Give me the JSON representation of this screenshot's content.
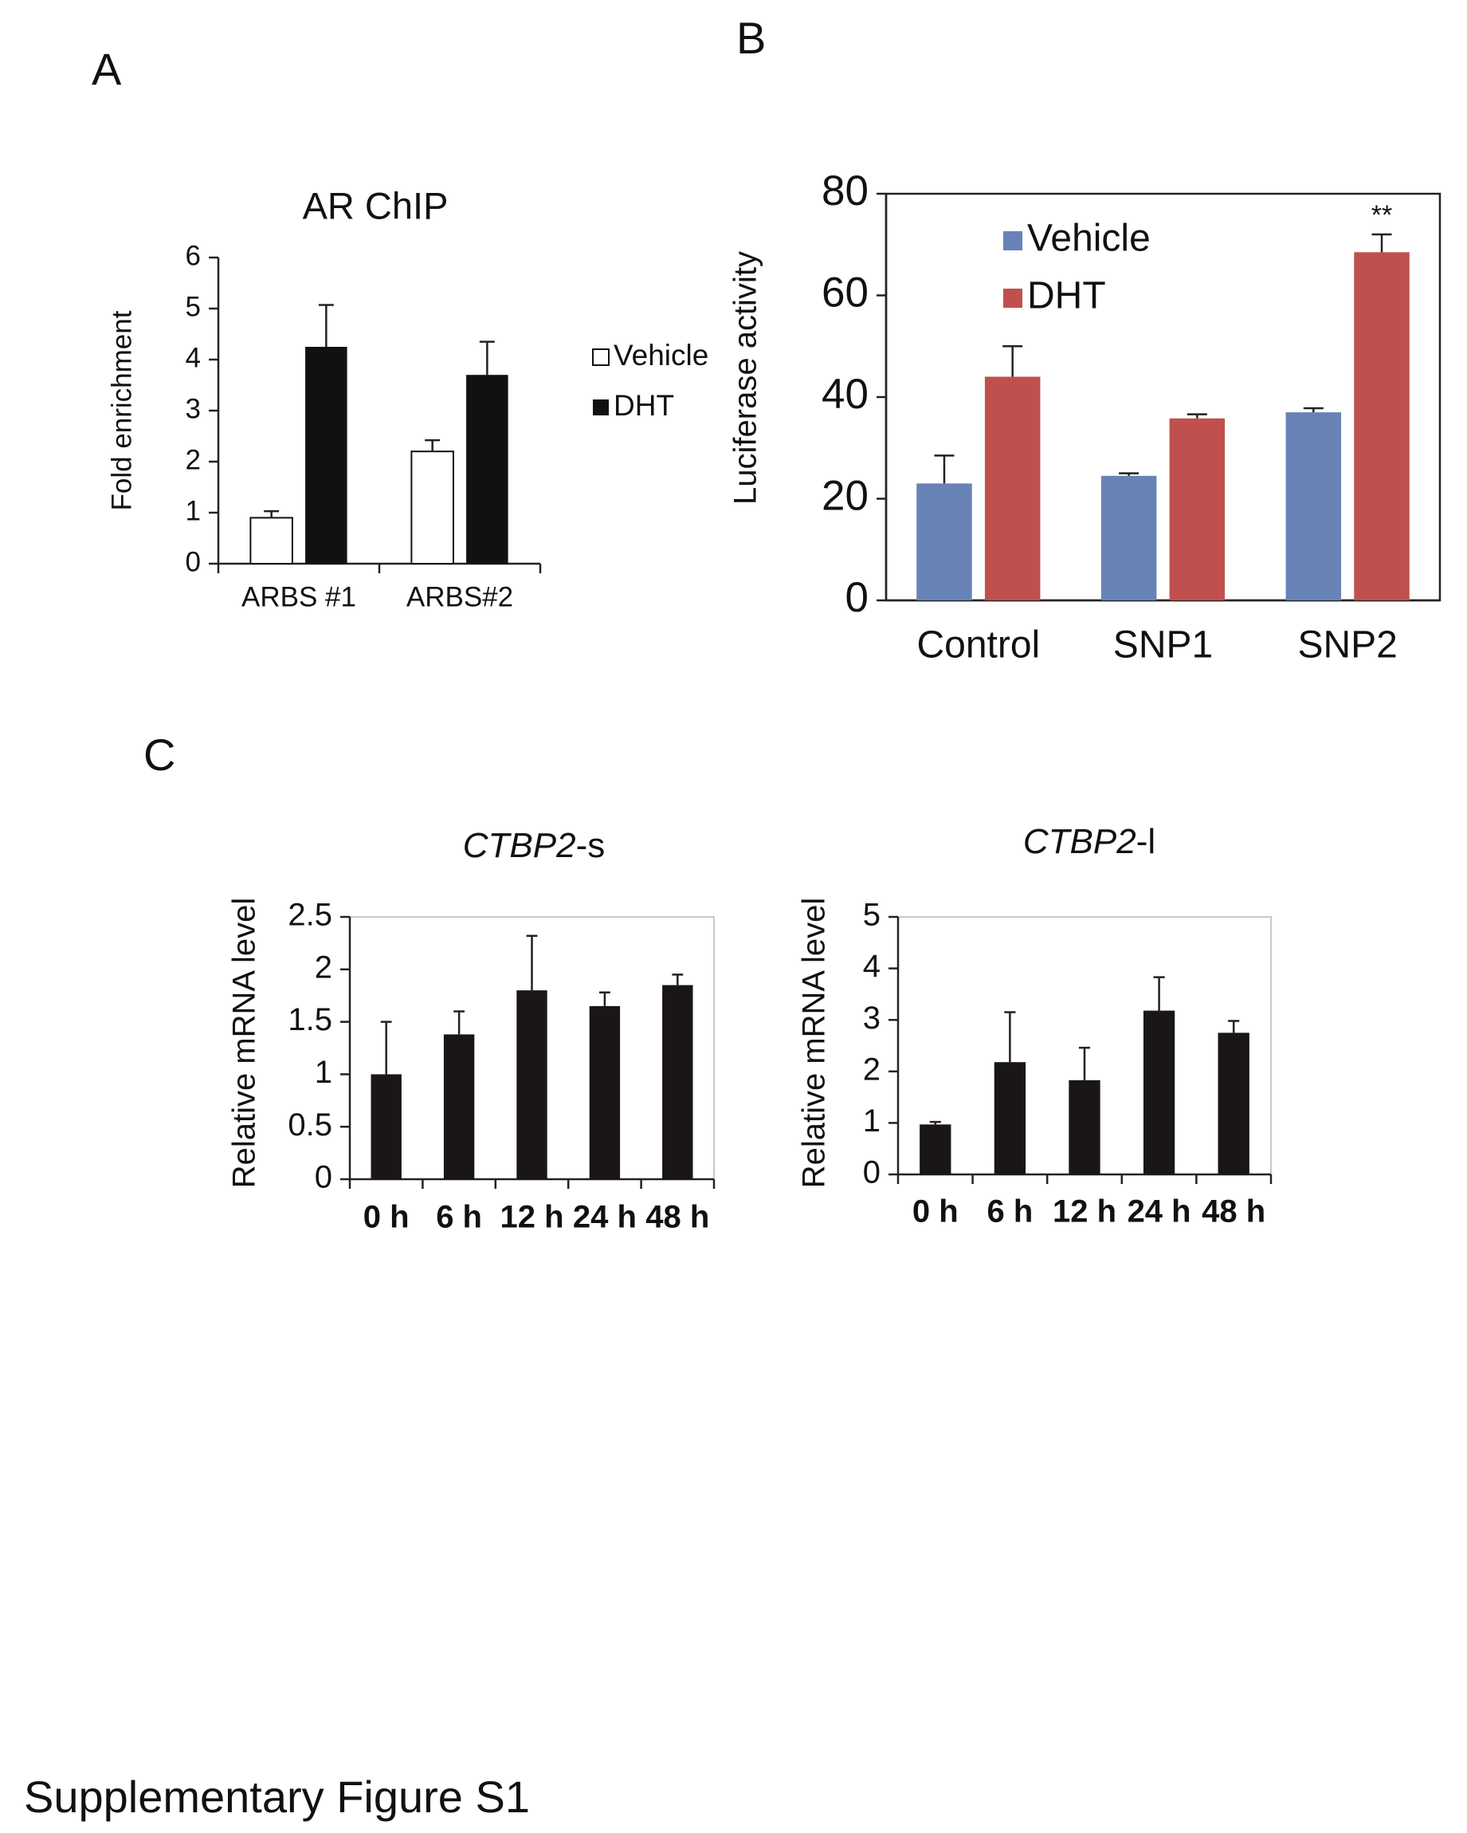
{
  "panels": {
    "a": "A",
    "b": "B",
    "c": "C"
  },
  "caption": "Supplementary Figure S1",
  "chart_data": [
    {
      "type": "bar",
      "title": "AR ChIP",
      "ylabel": "Fold enrichment",
      "categories": [
        "ARBS #1",
        "ARBS#2"
      ],
      "series": [
        {
          "name": "Vehicle",
          "color": "#ffffff",
          "values": [
            0.9,
            2.2
          ],
          "errors": [
            0.13,
            0.22
          ]
        },
        {
          "name": "DHT",
          "color": "#111111",
          "values": [
            4.25,
            3.7
          ],
          "errors": [
            0.82,
            0.65
          ]
        }
      ],
      "ylim": [
        0,
        6
      ],
      "yticks": [
        0,
        1,
        2,
        3,
        4,
        5,
        6
      ],
      "legend": "right-outside"
    },
    {
      "type": "bar",
      "ylabel": "Luciferase activity",
      "categories": [
        "Control",
        "SNP1",
        "SNP2"
      ],
      "series": [
        {
          "name": "Vehicle",
          "color": "#6783b6",
          "values": [
            23,
            24.5,
            37
          ],
          "errors": [
            5.5,
            0.5,
            0.8
          ]
        },
        {
          "name": "DHT",
          "color": "#c0504d",
          "values": [
            44,
            35.8,
            68.5
          ],
          "errors": [
            6,
            0.8,
            3.5
          ]
        }
      ],
      "ylim": [
        0,
        80
      ],
      "yticks": [
        0,
        20,
        40,
        60,
        80
      ],
      "legend": "top-left",
      "annotation": "**"
    },
    {
      "type": "bar",
      "title": {
        "italic": "CTBP2",
        "plain": "-s"
      },
      "ylabel": "Relative mRNA level",
      "categories": [
        "0 h",
        "6 h",
        "12 h",
        "24 h",
        "48 h"
      ],
      "series": [
        {
          "color": "#1a1616",
          "values": [
            1,
            1.38,
            1.8,
            1.65,
            1.85
          ],
          "errors": [
            0.5,
            0.22,
            0.52,
            0.13,
            0.1
          ]
        }
      ],
      "ylim": [
        0,
        2.5
      ],
      "yticks": [
        0,
        0.5,
        1,
        1.5,
        2,
        2.5
      ]
    },
    {
      "type": "bar",
      "title": {
        "italic": "CTBP2",
        "plain": "-l"
      },
      "ylabel": "Relative mRNA level",
      "categories": [
        "0 h",
        "6 h",
        "12 h",
        "24 h",
        "48 h"
      ],
      "series": [
        {
          "color": "#1a1616",
          "values": [
            0.97,
            2.18,
            1.83,
            3.18,
            2.75
          ],
          "errors": [
            0.05,
            0.97,
            0.63,
            0.65,
            0.23
          ]
        }
      ],
      "ylim": [
        0,
        5
      ],
      "yticks": [
        0,
        1,
        2,
        3,
        4,
        5
      ]
    }
  ]
}
